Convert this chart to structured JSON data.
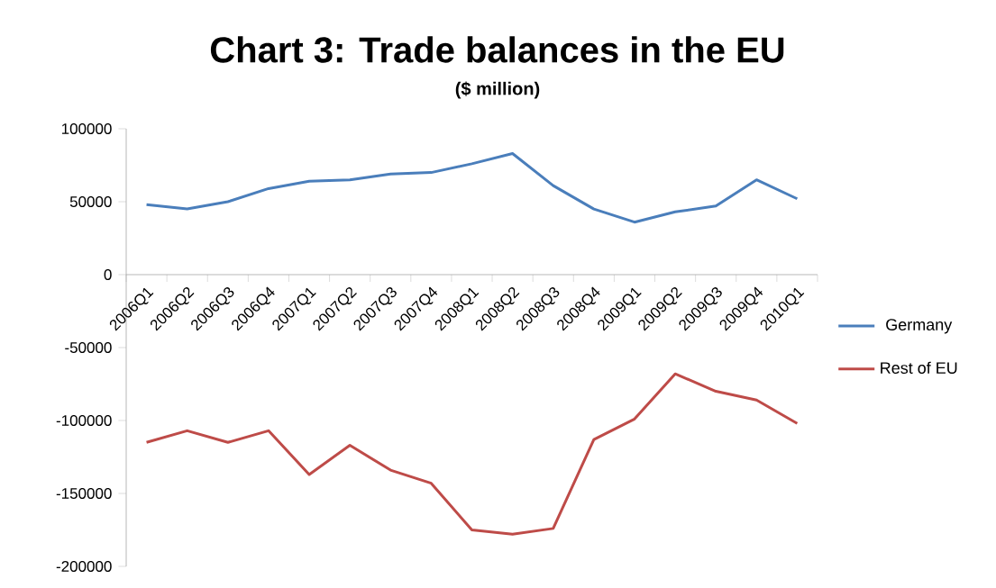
{
  "chart_data": {
    "type": "line",
    "title": "Chart 3: Trade balances in the EU",
    "subtitle": "($ million)",
    "categories": [
      "2006Q1",
      "2006Q2",
      "2006Q3",
      "2006Q4",
      "2007Q1",
      "2007Q2",
      "2007Q3",
      "2007Q4",
      "2008Q1",
      "2008Q2",
      "2008Q3",
      "2008Q4",
      "2009Q1",
      "2009Q2",
      "2009Q3",
      "2009Q4",
      "2010Q1"
    ],
    "series": [
      {
        "name": "Germany",
        "color": "#4a7ebb",
        "values": [
          48000,
          45000,
          50000,
          59000,
          64000,
          65000,
          69000,
          70000,
          76000,
          83000,
          61000,
          45000,
          36000,
          43000,
          47000,
          65000,
          52000
        ]
      },
      {
        "name": "Rest of EU",
        "color": "#be4b48",
        "values": [
          -115000,
          -107000,
          -115000,
          -107000,
          -137000,
          -117000,
          -134000,
          -143000,
          -175000,
          -178000,
          -174000,
          -113000,
          -99000,
          -68000,
          -80000,
          -86000,
          -102000
        ]
      }
    ],
    "ylim": [
      -200000,
      100000
    ],
    "yticks": [
      -200000,
      -150000,
      -100000,
      -50000,
      0,
      50000,
      100000
    ],
    "legend": "right",
    "line_style": "solid"
  }
}
